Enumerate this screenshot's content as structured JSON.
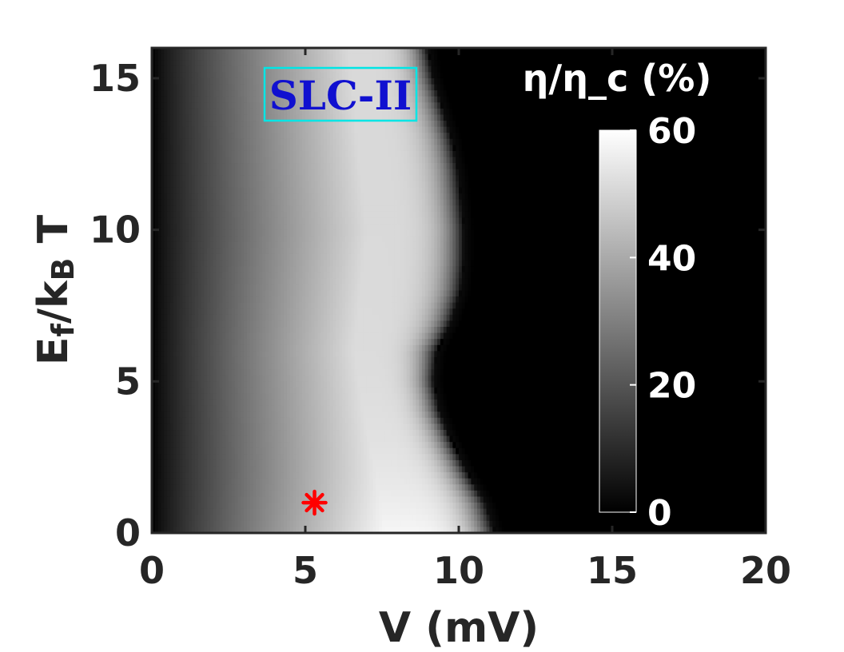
{
  "chart_data": {
    "type": "heatmap",
    "title": "",
    "xlabel": "V (mV)",
    "ylabel": "E_f/k_B T",
    "xlim": [
      0,
      20
    ],
    "ylim": [
      0,
      16
    ],
    "x_ticks": [
      "0",
      "5",
      "10",
      "15",
      "20"
    ],
    "y_ticks": [
      "0",
      "5",
      "10",
      "15"
    ],
    "colorbar": {
      "title": "η/η_c (%)",
      "range": [
        0,
        60
      ],
      "ticks": [
        "0",
        "20",
        "40",
        "60"
      ],
      "colormap": "gray"
    },
    "annotation_label": "SLC-II",
    "annotation_colors": {
      "text": "#1010d0",
      "border": "#00e5e5"
    },
    "marker": {
      "x": 5.3,
      "y": 1.0,
      "symbol": "asterisk",
      "color": "#ff0000"
    },
    "boundary_right_edge": [
      {
        "y": 0,
        "v": 11.2
      },
      {
        "y": 1,
        "v": 10.9
      },
      {
        "y": 2,
        "v": 10.3
      },
      {
        "y": 3,
        "v": 9.8
      },
      {
        "y": 4,
        "v": 9.4
      },
      {
        "y": 5,
        "v": 9.2
      },
      {
        "y": 6,
        "v": 9.3
      },
      {
        "y": 7,
        "v": 9.8
      },
      {
        "y": 8,
        "v": 10.1
      },
      {
        "y": 9,
        "v": 10.2
      },
      {
        "y": 10,
        "v": 10.2
      },
      {
        "y": 11,
        "v": 10.1
      },
      {
        "y": 12,
        "v": 10.0
      },
      {
        "y": 13,
        "v": 9.8
      },
      {
        "y": 14,
        "v": 9.5
      },
      {
        "y": 15,
        "v": 9.2
      },
      {
        "y": 16,
        "v": 9.0
      }
    ],
    "peak_efficiency_v": [
      {
        "y": 0,
        "v": 7.6
      },
      {
        "y": 2,
        "v": 7.3
      },
      {
        "y": 4,
        "v": 6.9
      },
      {
        "y": 6,
        "v": 6.6
      },
      {
        "y": 8,
        "v": 6.8
      },
      {
        "y": 10,
        "v": 7.0
      },
      {
        "y": 12,
        "v": 6.8
      },
      {
        "y": 14,
        "v": 6.6
      },
      {
        "y": 16,
        "v": 6.4
      }
    ],
    "peak_value_percent": 58
  }
}
